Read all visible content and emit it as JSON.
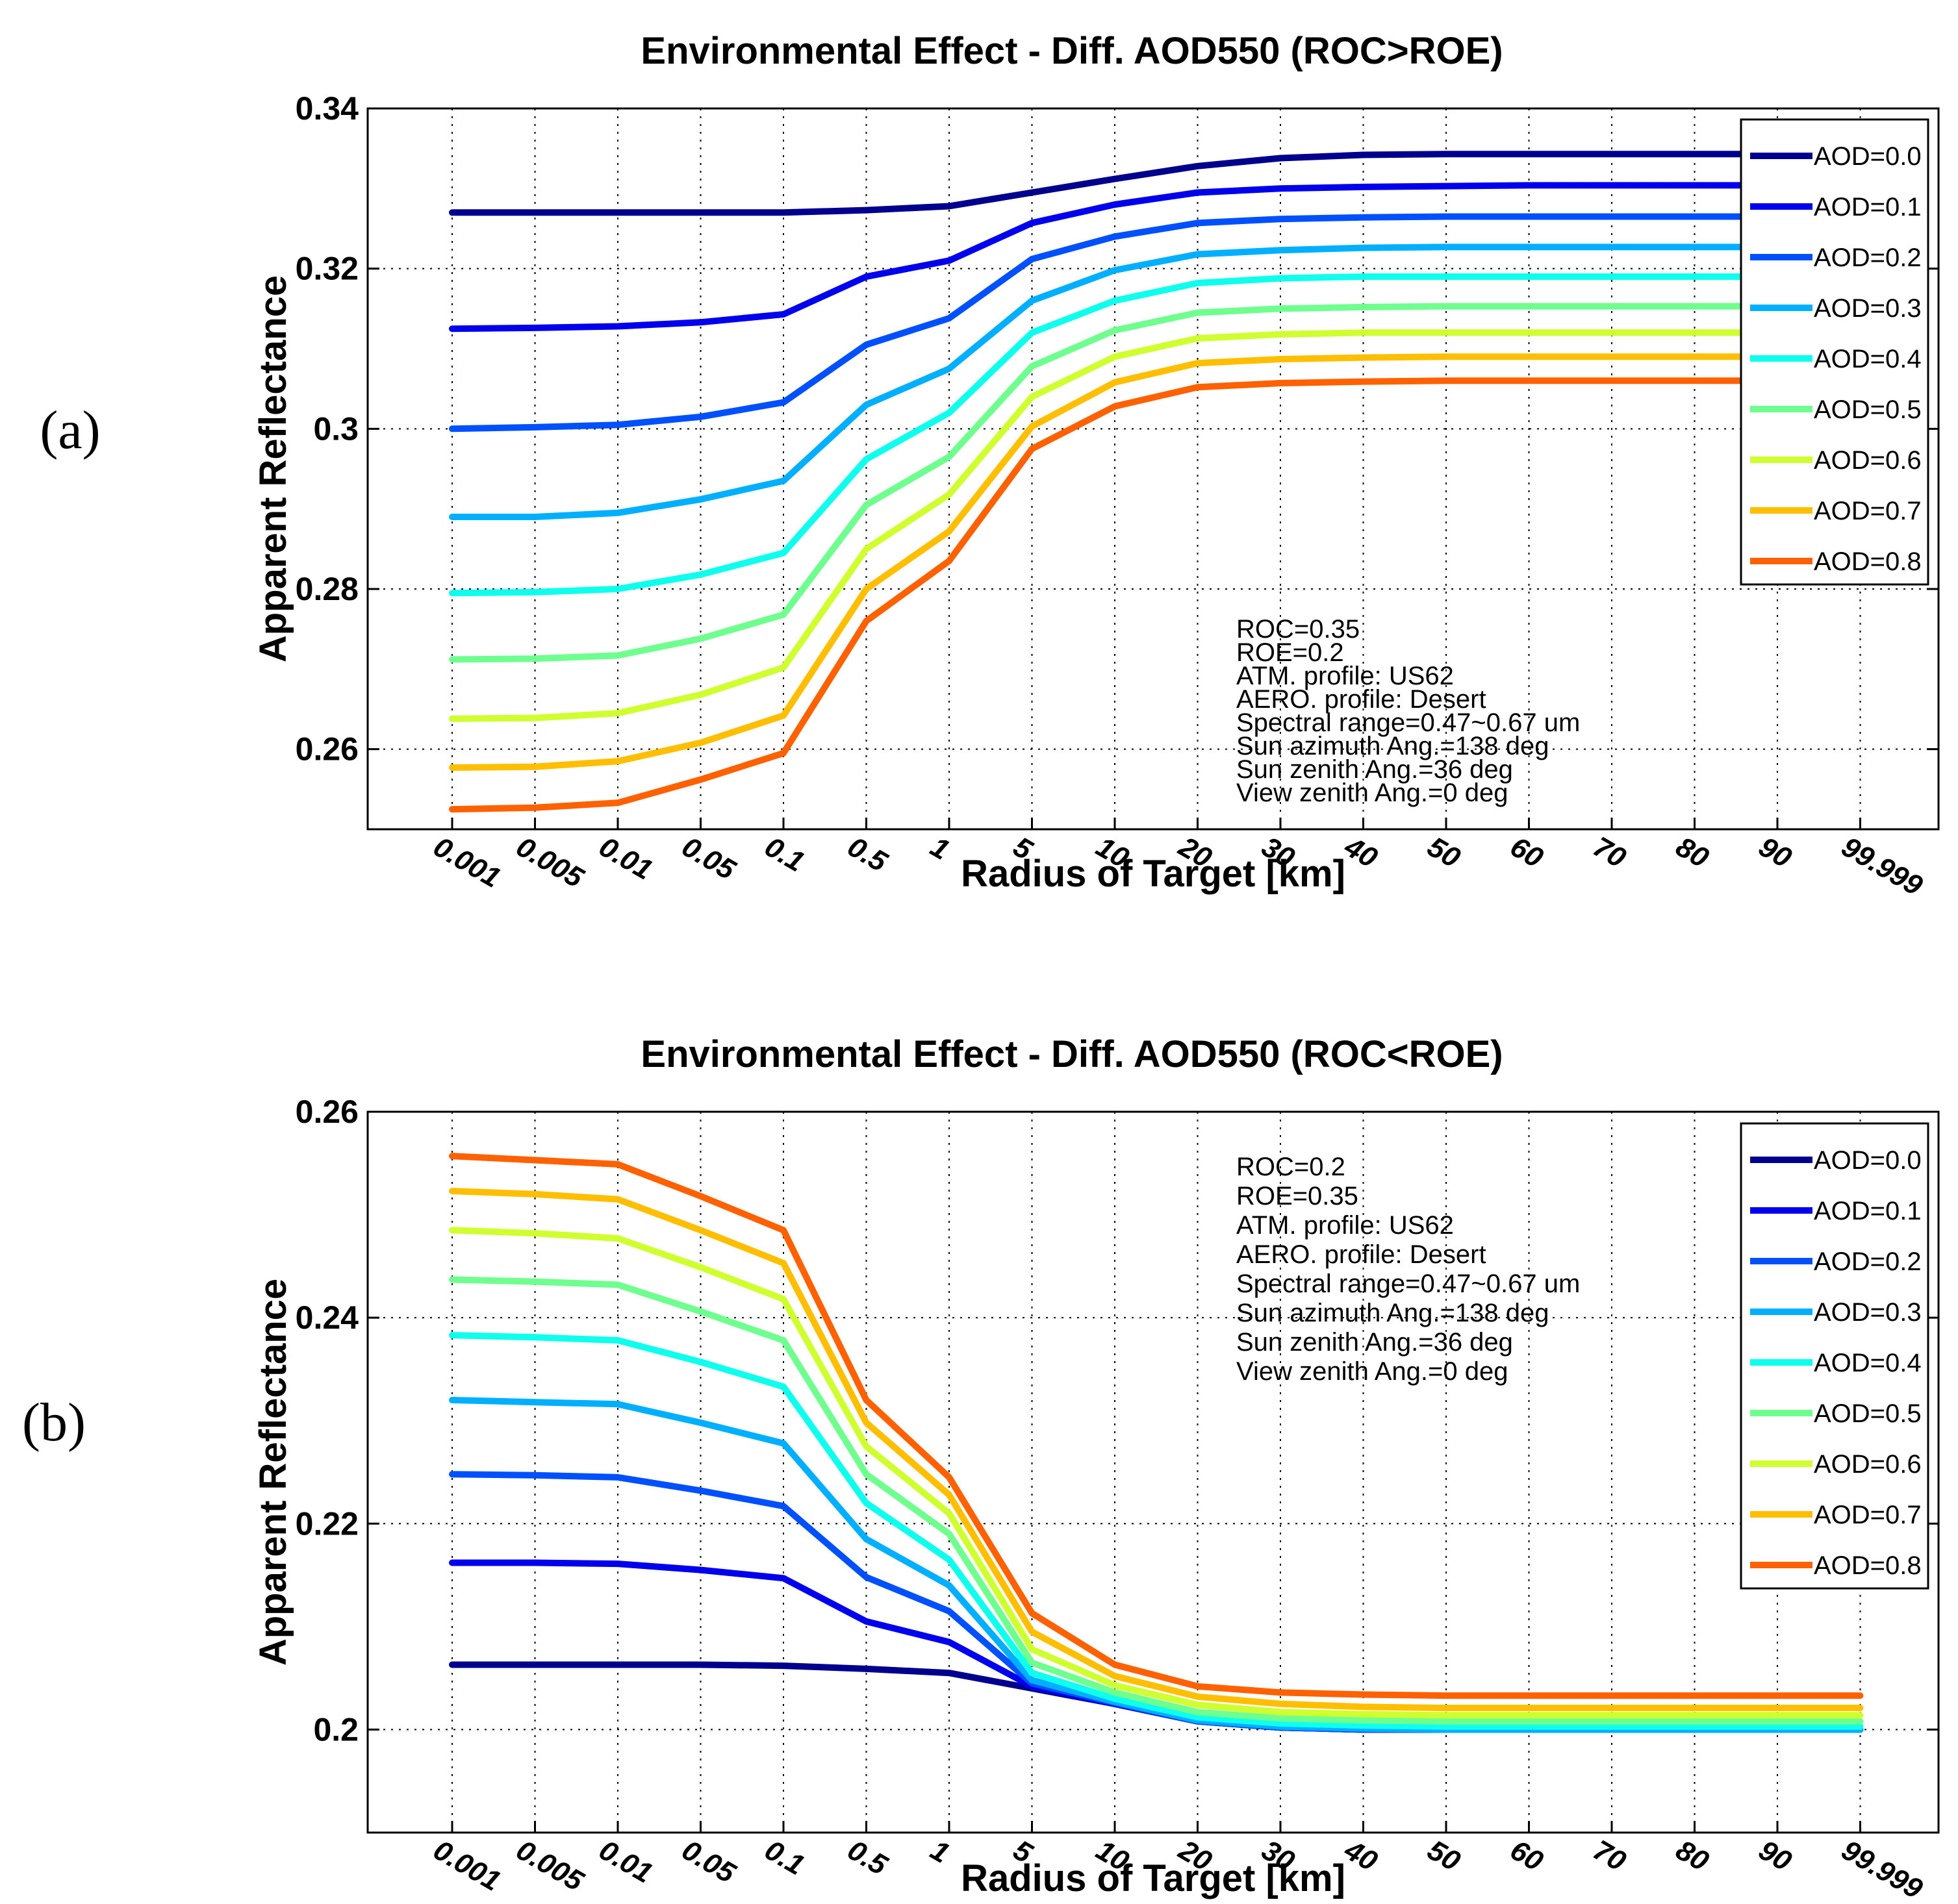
{
  "chart_data": [
    {
      "panel_label": "(a)",
      "type": "line",
      "title": "Environmental Effect - Diff. AOD550 (ROC>ROE)",
      "xlabel": "Radius of Target [km]",
      "ylabel": "Apparent Reflectance",
      "ylim": [
        0.25,
        0.34
      ],
      "yticks": [
        0.26,
        0.28,
        0.3,
        0.32,
        0.34
      ],
      "ytick_labels": [
        "0.26",
        "0.28",
        "0.3",
        "0.32",
        "0.34"
      ],
      "grid": true,
      "legend_position": "top-right",
      "categories": [
        "0.001",
        "0.005",
        "0.01",
        "0.05",
        "0.1",
        "0.5",
        "1",
        "5",
        "10",
        "20",
        "30",
        "40",
        "50",
        "60",
        "70",
        "80",
        "90",
        "99.999"
      ],
      "series": [
        {
          "name": "AOD=0.0",
          "color": "#00008f",
          "values": [
            0.327,
            0.327,
            0.327,
            0.327,
            0.327,
            0.3273,
            0.3278,
            0.3295,
            0.3312,
            0.3328,
            0.3338,
            0.3342,
            0.3343,
            0.3343,
            0.3343,
            0.3343,
            0.3343,
            0.3343
          ]
        },
        {
          "name": "AOD=0.1",
          "color": "#0000ef",
          "values": [
            0.3125,
            0.3126,
            0.3128,
            0.3133,
            0.3143,
            0.319,
            0.321,
            0.3257,
            0.328,
            0.3295,
            0.33,
            0.3302,
            0.3303,
            0.3304,
            0.3304,
            0.3304,
            0.3304,
            0.3304
          ]
        },
        {
          "name": "AOD=0.2",
          "color": "#0050ff",
          "values": [
            0.3,
            0.3002,
            0.3005,
            0.3015,
            0.3033,
            0.3105,
            0.3138,
            0.3212,
            0.324,
            0.3257,
            0.3262,
            0.3264,
            0.3265,
            0.3265,
            0.3265,
            0.3265,
            0.3265,
            0.3265
          ]
        },
        {
          "name": "AOD=0.3",
          "color": "#00afff",
          "values": [
            0.289,
            0.289,
            0.2895,
            0.2912,
            0.2935,
            0.303,
            0.3075,
            0.316,
            0.3198,
            0.3218,
            0.3223,
            0.3226,
            0.3227,
            0.3227,
            0.3227,
            0.3227,
            0.3227,
            0.3227
          ]
        },
        {
          "name": "AOD=0.4",
          "color": "#0fffef",
          "values": [
            0.2795,
            0.2796,
            0.28,
            0.2818,
            0.2845,
            0.2962,
            0.302,
            0.312,
            0.316,
            0.3182,
            0.3188,
            0.319,
            0.319,
            0.319,
            0.319,
            0.319,
            0.319,
            0.319
          ]
        },
        {
          "name": "AOD=0.5",
          "color": "#6fff8f",
          "values": [
            0.2712,
            0.2713,
            0.2717,
            0.2738,
            0.2768,
            0.2905,
            0.2965,
            0.3078,
            0.3123,
            0.3145,
            0.315,
            0.3152,
            0.3153,
            0.3153,
            0.3153,
            0.3153,
            0.3153,
            0.3153
          ]
        },
        {
          "name": "AOD=0.6",
          "color": "#cfff2f",
          "values": [
            0.2638,
            0.2639,
            0.2645,
            0.2668,
            0.2702,
            0.285,
            0.2918,
            0.304,
            0.309,
            0.3113,
            0.3118,
            0.312,
            0.312,
            0.312,
            0.312,
            0.312,
            0.312,
            0.312
          ]
        },
        {
          "name": "AOD=0.7",
          "color": "#ffbf00",
          "values": [
            0.2577,
            0.2578,
            0.2585,
            0.2608,
            0.2642,
            0.28,
            0.2872,
            0.3003,
            0.3058,
            0.3082,
            0.3087,
            0.3089,
            0.309,
            0.309,
            0.309,
            0.309,
            0.309,
            0.309
          ]
        },
        {
          "name": "AOD=0.8",
          "color": "#ff6000",
          "values": [
            0.2525,
            0.2527,
            0.2533,
            0.2562,
            0.2595,
            0.276,
            0.2835,
            0.2975,
            0.3028,
            0.3052,
            0.3057,
            0.3059,
            0.306,
            0.306,
            0.306,
            0.306,
            0.306,
            0.306
          ]
        }
      ],
      "annotation": [
        "ROC=0.35",
        "ROE=0.2",
        "ATM. profile: US62",
        "AERO. profile: Desert",
        "Spectral range=0.47~0.67 um",
        "Sun azimuth Ang.=138 deg",
        "Sun zenith Ang.=36 deg",
        "View zenith Ang.=0 deg"
      ]
    },
    {
      "panel_label": "(b)",
      "type": "line",
      "title": "Environmental Effect - Diff. AOD550 (ROC<ROE)",
      "xlabel": "Radius of Target [km]",
      "ylabel": "Apparent Reflectance",
      "ylim": [
        0.19,
        0.26
      ],
      "yticks": [
        0.2,
        0.22,
        0.24,
        0.26
      ],
      "ytick_labels": [
        "0.2",
        "0.22",
        "0.24",
        "0.26"
      ],
      "grid": true,
      "legend_position": "top-right",
      "categories": [
        "0.001",
        "0.005",
        "0.01",
        "0.05",
        "0.1",
        "0.5",
        "1",
        "5",
        "10",
        "20",
        "30",
        "40",
        "50",
        "60",
        "70",
        "80",
        "90",
        "99.999"
      ],
      "series": [
        {
          "name": "AOD=0.0",
          "color": "#00008f",
          "values": [
            0.2063,
            0.2063,
            0.2063,
            0.2063,
            0.2062,
            0.2059,
            0.2055,
            0.204,
            0.2025,
            0.2008,
            0.2002,
            0.2,
            0.2,
            0.2,
            0.2,
            0.2,
            0.2,
            0.2
          ]
        },
        {
          "name": "AOD=0.1",
          "color": "#0000ef",
          "values": [
            0.2162,
            0.2162,
            0.2161,
            0.2155,
            0.2147,
            0.2105,
            0.2085,
            0.2042,
            0.2025,
            0.2008,
            0.2002,
            0.2,
            0.2,
            0.2,
            0.2,
            0.2,
            0.2,
            0.2
          ]
        },
        {
          "name": "AOD=0.2",
          "color": "#0050ff",
          "values": [
            0.2248,
            0.2247,
            0.2245,
            0.2232,
            0.2217,
            0.2148,
            0.2115,
            0.2045,
            0.2026,
            0.2008,
            0.2002,
            0.2,
            0.2,
            0.2,
            0.2,
            0.2,
            0.2,
            0.2
          ]
        },
        {
          "name": "AOD=0.3",
          "color": "#00afff",
          "values": [
            0.232,
            0.2318,
            0.2316,
            0.2298,
            0.2278,
            0.2185,
            0.214,
            0.2048,
            0.2027,
            0.2009,
            0.2003,
            0.2001,
            0.2,
            0.2,
            0.2,
            0.2,
            0.2,
            0.2
          ]
        },
        {
          "name": "AOD=0.4",
          "color": "#0fffef",
          "values": [
            0.2383,
            0.2381,
            0.2378,
            0.2357,
            0.2333,
            0.222,
            0.2165,
            0.2055,
            0.203,
            0.2012,
            0.2006,
            0.2004,
            0.2003,
            0.2003,
            0.2003,
            0.2003,
            0.2003,
            0.2003
          ]
        },
        {
          "name": "AOD=0.5",
          "color": "#6fff8f",
          "values": [
            0.2437,
            0.2435,
            0.2432,
            0.2406,
            0.2378,
            0.2248,
            0.219,
            0.2065,
            0.2036,
            0.2017,
            0.2011,
            0.2009,
            0.2008,
            0.2008,
            0.2008,
            0.2008,
            0.2008,
            0.2008
          ]
        },
        {
          "name": "AOD=0.6",
          "color": "#cfff2f",
          "values": [
            0.2485,
            0.2482,
            0.2477,
            0.2449,
            0.2418,
            0.2275,
            0.221,
            0.2078,
            0.2043,
            0.2024,
            0.2017,
            0.2015,
            0.2014,
            0.2014,
            0.2014,
            0.2014,
            0.2014,
            0.2014
          ]
        },
        {
          "name": "AOD=0.7",
          "color": "#ffbf00",
          "values": [
            0.2523,
            0.252,
            0.2515,
            0.2485,
            0.2453,
            0.2298,
            0.2228,
            0.2095,
            0.2052,
            0.2032,
            0.2025,
            0.2022,
            0.2021,
            0.2021,
            0.2021,
            0.2021,
            0.2021,
            0.2021
          ]
        },
        {
          "name": "AOD=0.8",
          "color": "#ff6000",
          "values": [
            0.2557,
            0.2553,
            0.2549,
            0.2518,
            0.2485,
            0.232,
            0.2245,
            0.2113,
            0.2063,
            0.2042,
            0.2036,
            0.2034,
            0.2033,
            0.2033,
            0.2033,
            0.2033,
            0.2033,
            0.2033
          ]
        }
      ],
      "annotation": [
        "ROC=0.2",
        "ROE=0.35",
        "ATM. profile: US62",
        "AERO. profile: Desert",
        "Spectral range=0.47~0.67 um",
        "Sun azimuth Ang.=138 deg",
        "Sun zenith Ang.=36 deg",
        "View zenith Ang.=0 deg"
      ]
    }
  ]
}
